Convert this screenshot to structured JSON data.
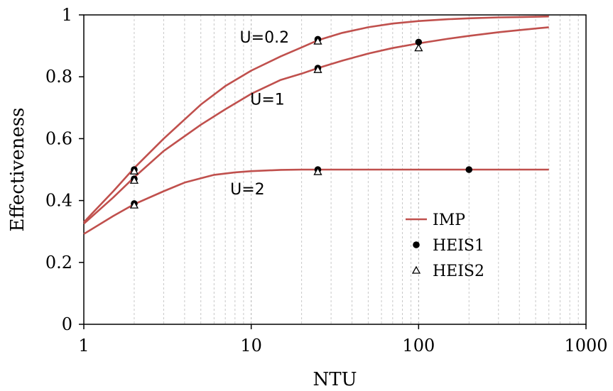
{
  "chart_data": {
    "type": "line",
    "title": "",
    "xlabel": "NTU",
    "ylabel": "Effectiveness",
    "x_scale": "log",
    "xlim": [
      1,
      1000
    ],
    "ylim": [
      0,
      1
    ],
    "x_ticks": [
      "1",
      "10",
      "100",
      "1000"
    ],
    "y_ticks": [
      "0",
      "0.2",
      "0.4",
      "0.6",
      "0.8",
      "1"
    ],
    "grid": "vertical minor gridlines (log), dashed light gray",
    "legend_position": "lower-right",
    "legend": [
      "IMP",
      "HEIS1",
      "HEIS2"
    ],
    "annotations": [
      {
        "text": "U=0.2",
        "x": 12,
        "y": 0.91
      },
      {
        "text": "U=1",
        "x": 12.5,
        "y": 0.71
      },
      {
        "text": "U=2",
        "x": 9.5,
        "y": 0.42
      }
    ],
    "colors": {
      "IMP": "#c0504d",
      "HEIS1": "#000000",
      "HEIS2": "#000000"
    },
    "series": [
      {
        "name": "IMP",
        "style": "line",
        "curves": [
          {
            "label": "U=0.2",
            "x": [
              1,
              1.5,
              2,
              3,
              5,
              7,
              10,
              15,
              20,
              25,
              35,
              50,
              70,
              100,
              150,
              200,
              300,
              400,
              600
            ],
            "y": [
              0.33,
              0.43,
              0.505,
              0.6,
              0.71,
              0.77,
              0.82,
              0.866,
              0.895,
              0.918,
              0.942,
              0.96,
              0.972,
              0.98,
              0.986,
              0.989,
              0.992,
              0.993,
              0.995
            ]
          },
          {
            "label": "U=1",
            "x": [
              1,
              1.5,
              2,
              3,
              5,
              7,
              10,
              15,
              20,
              25,
              35,
              50,
              70,
              100,
              150,
              200,
              300,
              400,
              600
            ],
            "y": [
              0.325,
              0.41,
              0.475,
              0.56,
              0.645,
              0.695,
              0.745,
              0.79,
              0.81,
              0.828,
              0.852,
              0.875,
              0.893,
              0.908,
              0.923,
              0.932,
              0.944,
              0.951,
              0.96
            ]
          },
          {
            "label": "U=2",
            "x": [
              1,
              1.5,
              2,
              3,
              4,
              5,
              6,
              8,
              10,
              15,
              20,
              30,
              50,
              100,
              200,
              400,
              600
            ],
            "y": [
              0.292,
              0.35,
              0.388,
              0.43,
              0.458,
              0.472,
              0.483,
              0.491,
              0.495,
              0.499,
              0.5,
              0.5,
              0.5,
              0.5,
              0.5,
              0.5,
              0.5
            ]
          }
        ]
      },
      {
        "name": "HEIS1",
        "style": "marker-circle",
        "points": [
          {
            "x": 2,
            "y": 0.5
          },
          {
            "x": 2,
            "y": 0.47
          },
          {
            "x": 2,
            "y": 0.39
          },
          {
            "x": 25,
            "y": 0.921
          },
          {
            "x": 25,
            "y": 0.828
          },
          {
            "x": 25,
            "y": 0.5
          },
          {
            "x": 100,
            "y": 0.912
          },
          {
            "x": 200,
            "y": 0.5
          }
        ]
      },
      {
        "name": "HEIS2",
        "style": "marker-triangle",
        "points": [
          {
            "x": 2,
            "y": 0.495
          },
          {
            "x": 2,
            "y": 0.465
          },
          {
            "x": 2,
            "y": 0.385
          },
          {
            "x": 25,
            "y": 0.915
          },
          {
            "x": 25,
            "y": 0.823
          },
          {
            "x": 25,
            "y": 0.493
          },
          {
            "x": 100,
            "y": 0.893
          }
        ]
      }
    ]
  }
}
